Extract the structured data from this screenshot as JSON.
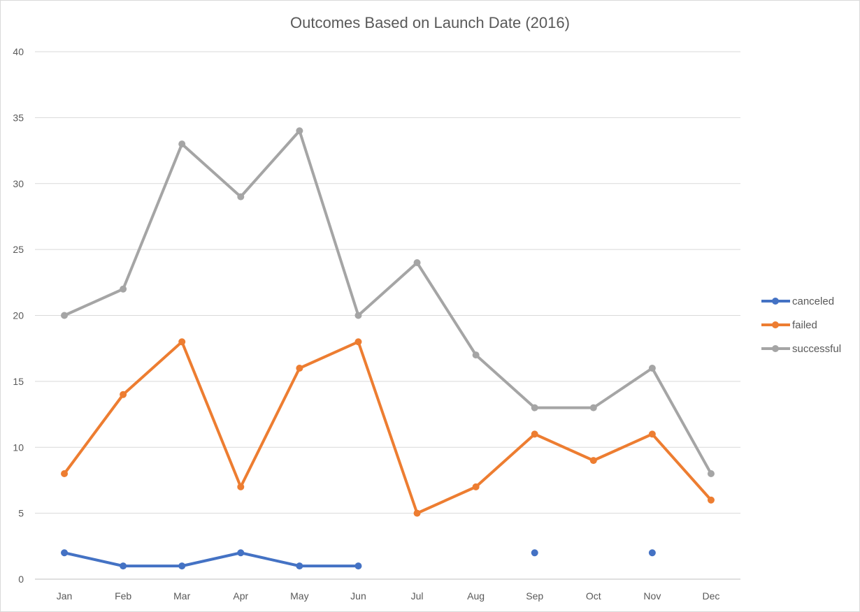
{
  "chart_data": {
    "type": "line",
    "title": "Outcomes Based on Launch Date (2016)",
    "categories": [
      "Jan",
      "Feb",
      "Mar",
      "Apr",
      "May",
      "Jun",
      "Jul",
      "Aug",
      "Sep",
      "Oct",
      "Nov",
      "Dec"
    ],
    "ylim": [
      0,
      40
    ],
    "yticks": [
      0,
      5,
      10,
      15,
      20,
      25,
      30,
      35,
      40
    ],
    "grid": true,
    "legend_position": "right",
    "series": [
      {
        "name": "canceled",
        "color": "#4472c4",
        "values": [
          2,
          1,
          1,
          2,
          1,
          1,
          null,
          null,
          2,
          null,
          2,
          null
        ]
      },
      {
        "name": "failed",
        "color": "#ed7d31",
        "values": [
          8,
          14,
          18,
          7,
          16,
          18,
          5,
          7,
          11,
          9,
          11,
          6
        ]
      },
      {
        "name": "successful",
        "color": "#a5a5a5",
        "values": [
          20,
          22,
          33,
          29,
          34,
          20,
          24,
          17,
          13,
          13,
          16,
          8
        ]
      }
    ]
  }
}
